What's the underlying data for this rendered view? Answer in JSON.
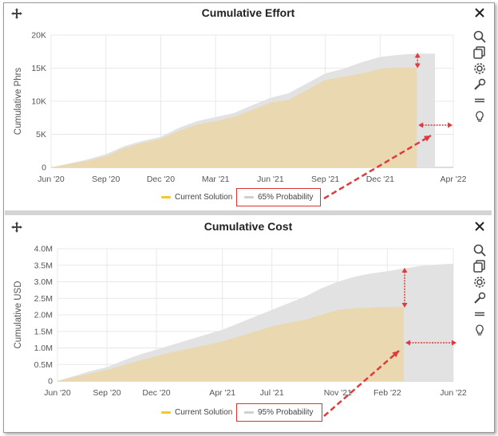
{
  "colors": {
    "current": "#ead8b0",
    "current_legend": "#f3c92b",
    "probability": "#e2e2e2",
    "annotation": "#e03a3a",
    "grid": "#e8e8e8"
  },
  "icons": [
    "move-icon",
    "close-icon",
    "search-icon",
    "copy-icon",
    "gear-icon",
    "wrench-icon",
    "menu-icon",
    "lightbulb-icon"
  ],
  "chart_data": [
    {
      "type": "area",
      "title": "Cumulative Effort",
      "xlabel": "",
      "ylabel": "Cumulative Phrs",
      "x_ticks": [
        "Jun '20",
        "Sep '20",
        "Dec '20",
        "Mar '21",
        "Jun '21",
        "Sep '21",
        "Dec '21",
        "Apr '22"
      ],
      "y_ticks": [
        "0",
        "5K",
        "10K",
        "15K",
        "20K"
      ],
      "ylim": [
        0,
        20000
      ],
      "grid": true,
      "legend_position": "bottom",
      "series": [
        {
          "name": "Current Solution",
          "x": [
            "2020-06",
            "2020-07",
            "2020-08",
            "2020-09",
            "2020-10",
            "2020-11",
            "2020-12",
            "2021-01",
            "2021-02",
            "2021-03",
            "2021-04",
            "2021-05",
            "2021-06",
            "2021-07",
            "2021-08",
            "2021-09",
            "2021-10",
            "2021-11",
            "2021-12",
            "2022-01",
            "2022-02"
          ],
          "values": [
            0,
            500,
            1000,
            1700,
            2900,
            3700,
            4300,
            5500,
            6500,
            7000,
            7600,
            8700,
            9800,
            10200,
            11700,
            13200,
            13700,
            14200,
            14900,
            15100,
            15100
          ]
        },
        {
          "name": "65% Probability",
          "x": [
            "2020-06",
            "2020-07",
            "2020-08",
            "2020-09",
            "2020-10",
            "2020-11",
            "2020-12",
            "2021-01",
            "2021-02",
            "2021-03",
            "2021-04",
            "2021-05",
            "2021-06",
            "2021-07",
            "2021-08",
            "2021-09",
            "2021-10",
            "2021-11",
            "2021-12",
            "2022-01",
            "2022-02",
            "2022-03"
          ],
          "values": [
            0,
            600,
            1200,
            2000,
            3200,
            4000,
            4600,
            6000,
            7000,
            7600,
            8200,
            9400,
            10500,
            11200,
            12700,
            14200,
            14900,
            15900,
            16700,
            17000,
            17200,
            17200
          ]
        }
      ],
      "annotation": "65% Probability"
    },
    {
      "type": "area",
      "title": "Cumulative Cost",
      "xlabel": "",
      "ylabel": "Cumulative USD",
      "x_ticks": [
        "Jun '20",
        "Sep '20",
        "Dec '20",
        "Apr '21",
        "Jul '21",
        "Nov '21",
        "Feb '22",
        "Jun '22"
      ],
      "y_ticks": [
        "0",
        "0.5M",
        "1.0M",
        "1.5M",
        "2.0M",
        "2.5M",
        "3.0M",
        "3.5M",
        "4.0M"
      ],
      "ylim": [
        0,
        4000000
      ],
      "grid": true,
      "legend_position": "bottom",
      "series": [
        {
          "name": "Current Solution",
          "x": [
            "2020-06",
            "2020-07",
            "2020-08",
            "2020-09",
            "2020-10",
            "2020-11",
            "2020-12",
            "2021-01",
            "2021-02",
            "2021-03",
            "2021-04",
            "2021-05",
            "2021-06",
            "2021-07",
            "2021-08",
            "2021-09",
            "2021-10",
            "2021-11",
            "2021-12",
            "2022-01",
            "2022-02",
            "2022-03"
          ],
          "values": [
            0,
            120000,
            230000,
            330000,
            480000,
            620000,
            750000,
            880000,
            980000,
            1080000,
            1200000,
            1340000,
            1500000,
            1650000,
            1760000,
            1850000,
            2000000,
            2150000,
            2200000,
            2220000,
            2240000,
            2240000
          ]
        },
        {
          "name": "95% Probability",
          "x": [
            "2020-06",
            "2020-07",
            "2020-08",
            "2020-09",
            "2020-10",
            "2020-11",
            "2020-12",
            "2021-01",
            "2021-02",
            "2021-03",
            "2021-04",
            "2021-05",
            "2021-06",
            "2021-07",
            "2021-08",
            "2021-09",
            "2021-10",
            "2021-11",
            "2021-12",
            "2022-01",
            "2022-02",
            "2022-03",
            "2022-04",
            "2022-05",
            "2022-06"
          ],
          "values": [
            0,
            150000,
            300000,
            420000,
            620000,
            800000,
            950000,
            1100000,
            1250000,
            1400000,
            1550000,
            1750000,
            1950000,
            2150000,
            2350000,
            2550000,
            2800000,
            3000000,
            3150000,
            3250000,
            3320000,
            3400000,
            3480000,
            3520000,
            3550000
          ]
        }
      ],
      "annotation": "95% Probability"
    }
  ]
}
